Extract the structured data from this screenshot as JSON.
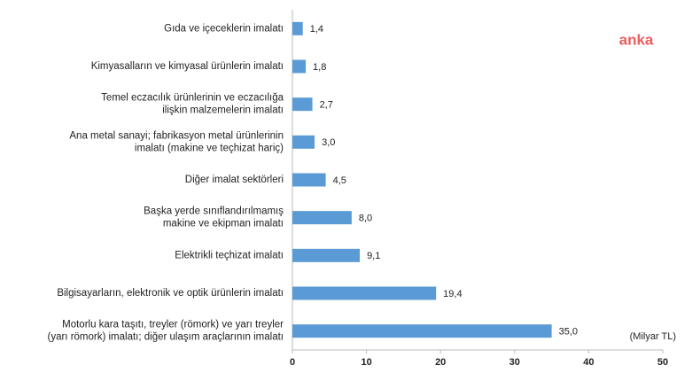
{
  "chart_data": {
    "type": "barh",
    "categories": [
      [
        "Gıda ve içeceklerin imalatı"
      ],
      [
        "Kimyasalların ve kimyasal ürünlerin imalatı"
      ],
      [
        "Temel eczacılık ürünlerinin ve eczacılığa",
        "ilişkin malzemelerin imalatı"
      ],
      [
        "Ana metal sanayi; fabrikasyon metal ürünlerinin",
        "imalatı (makine ve teçhizat hariç)"
      ],
      [
        "Diğer imalat sektörleri"
      ],
      [
        "Başka yerde sınıflandırılmamış",
        "makine ve ekipman imalatı"
      ],
      [
        "Elektrikli teçhizat imalatı"
      ],
      [
        "Bilgisayarların, elektronik ve optik ürünlerin imalatı"
      ],
      [
        "Motorlu kara taşıtı, treyler (römork) ve yarı treyler",
        "(yarı römork) imalatı; diğer ulaşım araçlarının imalatı"
      ]
    ],
    "values": [
      1.4,
      1.8,
      2.7,
      3.0,
      4.5,
      8.0,
      9.1,
      19.4,
      35.0
    ],
    "value_labels": [
      "1,4",
      "1,8",
      "2,7",
      "3,0",
      "4,5",
      "8,0",
      "9,1",
      "19,4",
      "35,0"
    ],
    "color": "#5b9bd5",
    "xlim": [
      0,
      50
    ],
    "xticks": [
      0,
      10,
      20,
      30,
      40,
      50
    ],
    "unit_label": "(Milyar TL)",
    "watermark": "anka"
  }
}
